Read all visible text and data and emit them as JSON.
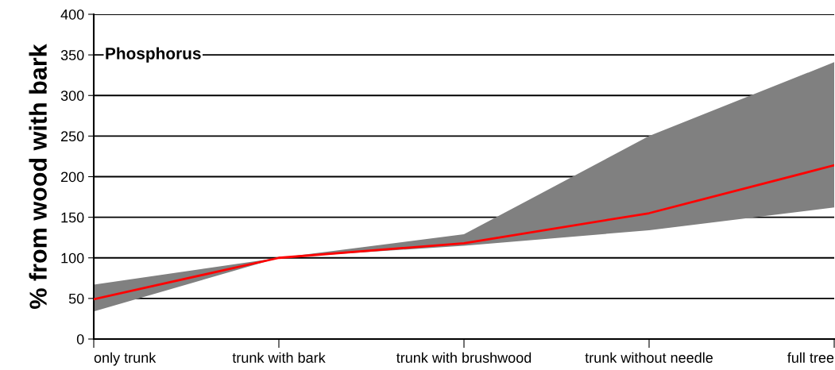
{
  "chart_data": {
    "type": "line",
    "title": "Phosphorus",
    "ylabel": "% from wood with bark",
    "categories": [
      "only trunk",
      "trunk with bark",
      "trunk with brushwood",
      "trunk without needle",
      "full tree"
    ],
    "series": [
      {
        "color": "#ff0000",
        "values": [
          49,
          100,
          118,
          155,
          214
        ],
        "lower": [
          34,
          100,
          115,
          134,
          162
        ],
        "upper": [
          67,
          100,
          129,
          250,
          341
        ]
      }
    ],
    "ylim": [
      0,
      400
    ],
    "yticks": [
      0,
      50,
      100,
      150,
      200,
      250,
      300,
      350,
      400
    ],
    "grid": "y",
    "legend": false,
    "marker": "none",
    "line_style": "solid"
  }
}
